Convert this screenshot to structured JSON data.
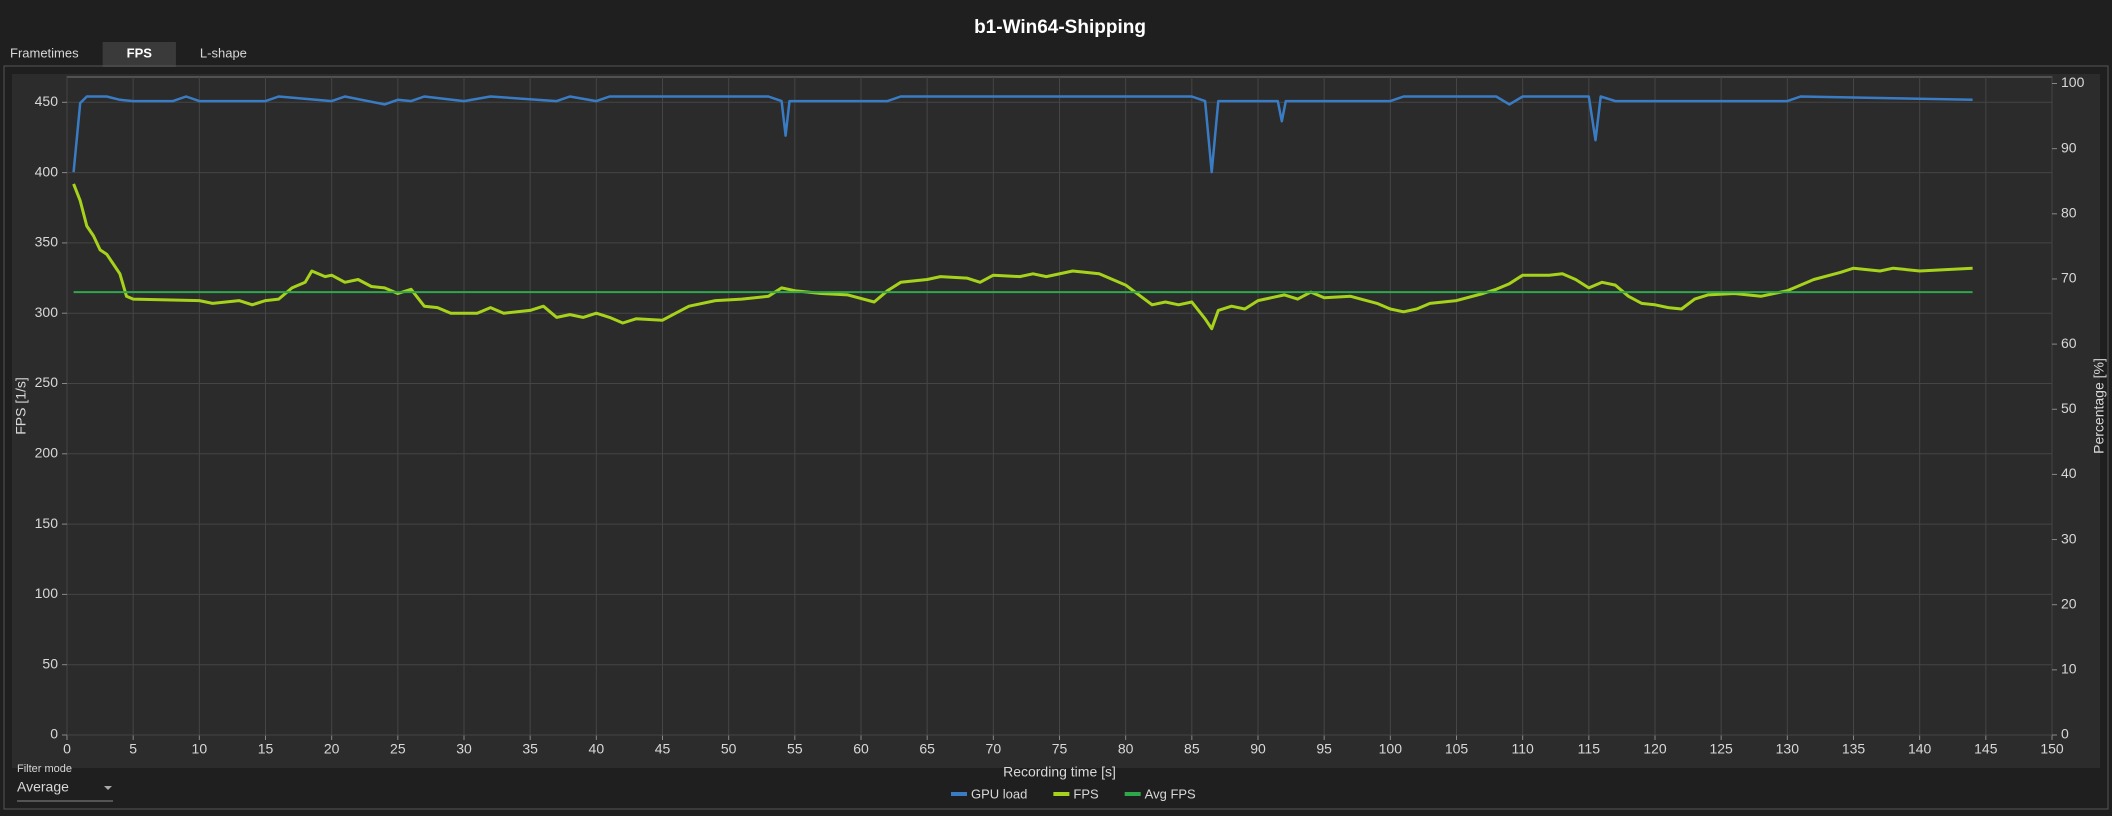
{
  "header": {
    "title": "b1-Win64-Shipping"
  },
  "tabs": [
    "Frametimes",
    "FPS",
    "L-shape"
  ],
  "selected_tab": 1,
  "filter": {
    "label": "Filter mode",
    "value": "Average"
  },
  "chart_data": {
    "type": "line",
    "xlabel": "Recording time [s]",
    "ylabel": "FPS [1/s]",
    "y2label": "Percentage [%]",
    "xlim": [
      0,
      150
    ],
    "xticks": [
      0,
      5,
      10,
      15,
      20,
      25,
      30,
      35,
      40,
      45,
      50,
      55,
      60,
      65,
      70,
      75,
      80,
      85,
      90,
      95,
      100,
      105,
      110,
      115,
      120,
      125,
      130,
      135,
      140,
      145,
      150
    ],
    "ylim": [
      0,
      468
    ],
    "yticks": [
      0,
      50,
      100,
      150,
      200,
      250,
      300,
      350,
      400,
      450
    ],
    "y2lim": [
      0,
      101
    ],
    "y2ticks": [
      0,
      10,
      20,
      30,
      40,
      50,
      60,
      70,
      80,
      90,
      100
    ],
    "grid": true,
    "series": [
      {
        "name": "GPU load",
        "color": "#3a7cc4",
        "axis": "y2",
        "x": [
          0.5,
          1,
          1.5,
          3,
          4,
          5,
          8,
          9,
          10,
          12,
          15,
          16,
          20,
          21,
          24,
          25,
          26,
          27,
          30,
          32,
          37,
          38,
          40,
          41,
          53,
          54,
          54.3,
          54.6,
          62,
          63,
          80,
          85,
          86,
          86.5,
          87,
          91.5,
          91.8,
          92.1,
          100,
          101,
          108,
          109,
          110,
          115,
          115.5,
          115.9,
          117,
          120,
          130,
          131,
          144
        ],
        "values": [
          86.4,
          97,
          98,
          98,
          97.5,
          97.3,
          97.3,
          98,
          97.3,
          97.3,
          97.3,
          98,
          97.3,
          98,
          96.8,
          97.5,
          97.3,
          98,
          97.3,
          98,
          97.3,
          98,
          97.3,
          98,
          98,
          97.3,
          92,
          97.3,
          97.3,
          98,
          98,
          98,
          97.3,
          86.4,
          97.3,
          97.3,
          94.2,
          97.3,
          97.3,
          98,
          98,
          96.8,
          98,
          98,
          91.3,
          98,
          97.3,
          97.3,
          97.3,
          98,
          97.5
        ]
      },
      {
        "name": "FPS",
        "color": "#a6d21c",
        "x": [
          0.5,
          1,
          1.5,
          2,
          2.5,
          3,
          3.5,
          4,
          4.5,
          5,
          10,
          11,
          13,
          14,
          15,
          16,
          17,
          18,
          18.5,
          19.5,
          20,
          21,
          22,
          23,
          24,
          25,
          26,
          27,
          28,
          29,
          31,
          32,
          33,
          35,
          36,
          37,
          38,
          39,
          40,
          41,
          42,
          43,
          45,
          46,
          47,
          49,
          51,
          53,
          54,
          55,
          57,
          59,
          61,
          62,
          63,
          65,
          66,
          68,
          69,
          70,
          72,
          73,
          74,
          76,
          78,
          80,
          81,
          82,
          83,
          84,
          85,
          86,
          86.5,
          87,
          88,
          89,
          90,
          92,
          93,
          94,
          95,
          97,
          99,
          100,
          101,
          102,
          103,
          105,
          107,
          108,
          109,
          110,
          112,
          113,
          114,
          115,
          116,
          117,
          118,
          119,
          120,
          121,
          122,
          123,
          124,
          126,
          128,
          130,
          132,
          134,
          135,
          137,
          138,
          140,
          142,
          144
        ],
        "values": [
          392,
          380,
          362,
          355,
          345,
          342,
          335,
          328,
          312,
          310,
          309,
          307,
          309,
          306,
          309,
          310,
          318,
          322,
          330,
          326,
          327,
          322,
          324,
          319,
          318,
          314,
          317,
          305,
          304,
          300,
          300,
          304,
          300,
          302,
          305,
          297,
          299,
          297,
          300,
          297,
          293,
          296,
          295,
          300,
          305,
          309,
          310,
          312,
          318,
          316,
          314,
          313,
          308,
          316,
          322,
          324,
          326,
          325,
          322,
          327,
          326,
          328,
          326,
          330,
          328,
          320,
          313,
          306,
          308,
          306,
          308,
          296,
          289,
          302,
          305,
          303,
          309,
          313,
          310,
          315,
          311,
          312,
          307,
          303,
          301,
          303,
          307,
          309,
          314,
          317,
          321,
          327,
          327,
          328,
          324,
          318,
          322,
          320,
          312,
          307,
          306,
          304,
          303,
          310,
          313,
          314,
          312,
          316,
          324,
          329,
          332,
          330,
          332,
          330,
          331,
          332
        ]
      }
    ],
    "reference_lines": [
      {
        "name": "Avg FPS",
        "value": 315,
        "color": "#2ea84a"
      }
    ]
  }
}
